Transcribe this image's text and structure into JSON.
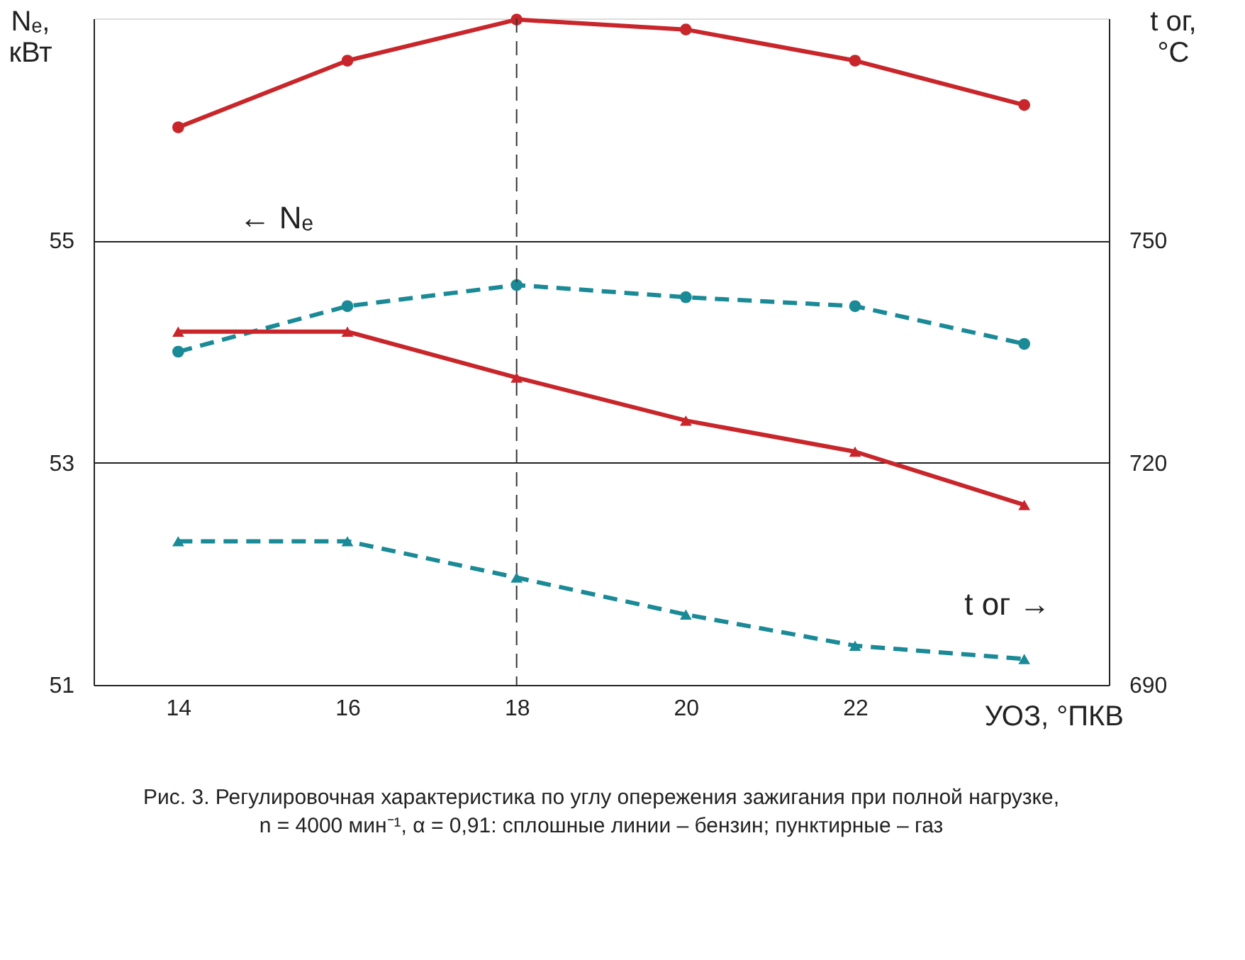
{
  "chart_data": {
    "type": "line",
    "x": [
      14,
      16,
      18,
      20,
      22,
      24
    ],
    "xlim": [
      13,
      25
    ],
    "xticks": [
      14,
      16,
      18,
      20,
      22
    ],
    "xlabel": "УОЗ, °ПКВ",
    "ylim": [
      51,
      57
    ],
    "yticks": [
      51,
      53,
      55
    ],
    "ylabel": "Nₑ, кВт",
    "y2lim": [
      690,
      780
    ],
    "y2ticks": [
      690,
      720,
      750
    ],
    "y2label": "t ог, °C",
    "grid": "y",
    "series": [
      {
        "color": "#c8262b",
        "marker": "circle",
        "line_style": "solid",
        "values": [
          56.02,
          56.62,
          56.99,
          56.9,
          56.62,
          56.22
        ]
      },
      {
        "color": "#1a8a96",
        "marker": "circle",
        "line_style": "dashed",
        "values": [
          54.0,
          54.41,
          54.6,
          54.49,
          54.41,
          54.07
        ]
      },
      {
        "color": "#c8262b",
        "marker": "triangle",
        "line_style": "solid",
        "axis": "y2",
        "values": [
          737.7,
          737.7,
          731.5,
          725.7,
          721.5,
          714.3
        ]
      },
      {
        "color": "#1a8a96",
        "marker": "triangle",
        "line_style": "dashed",
        "axis": "y2",
        "values": [
          709.4,
          709.4,
          704.5,
          699.5,
          695.3,
          693.5
        ]
      }
    ],
    "ref_lines": [
      {
        "axis": "x",
        "value": 18,
        "line_style": "dashed",
        "color": "#333333"
      }
    ],
    "annotations": [
      "← Nₑ",
      "t ог →",
      "Рис. 3. Регулировочная характеристика по углу опережения зажигания при полной нагрузке,",
      "n = 4000 мин⁻¹, α = 0,91: сплошные линии – бензин; пунктирные – газ"
    ]
  }
}
